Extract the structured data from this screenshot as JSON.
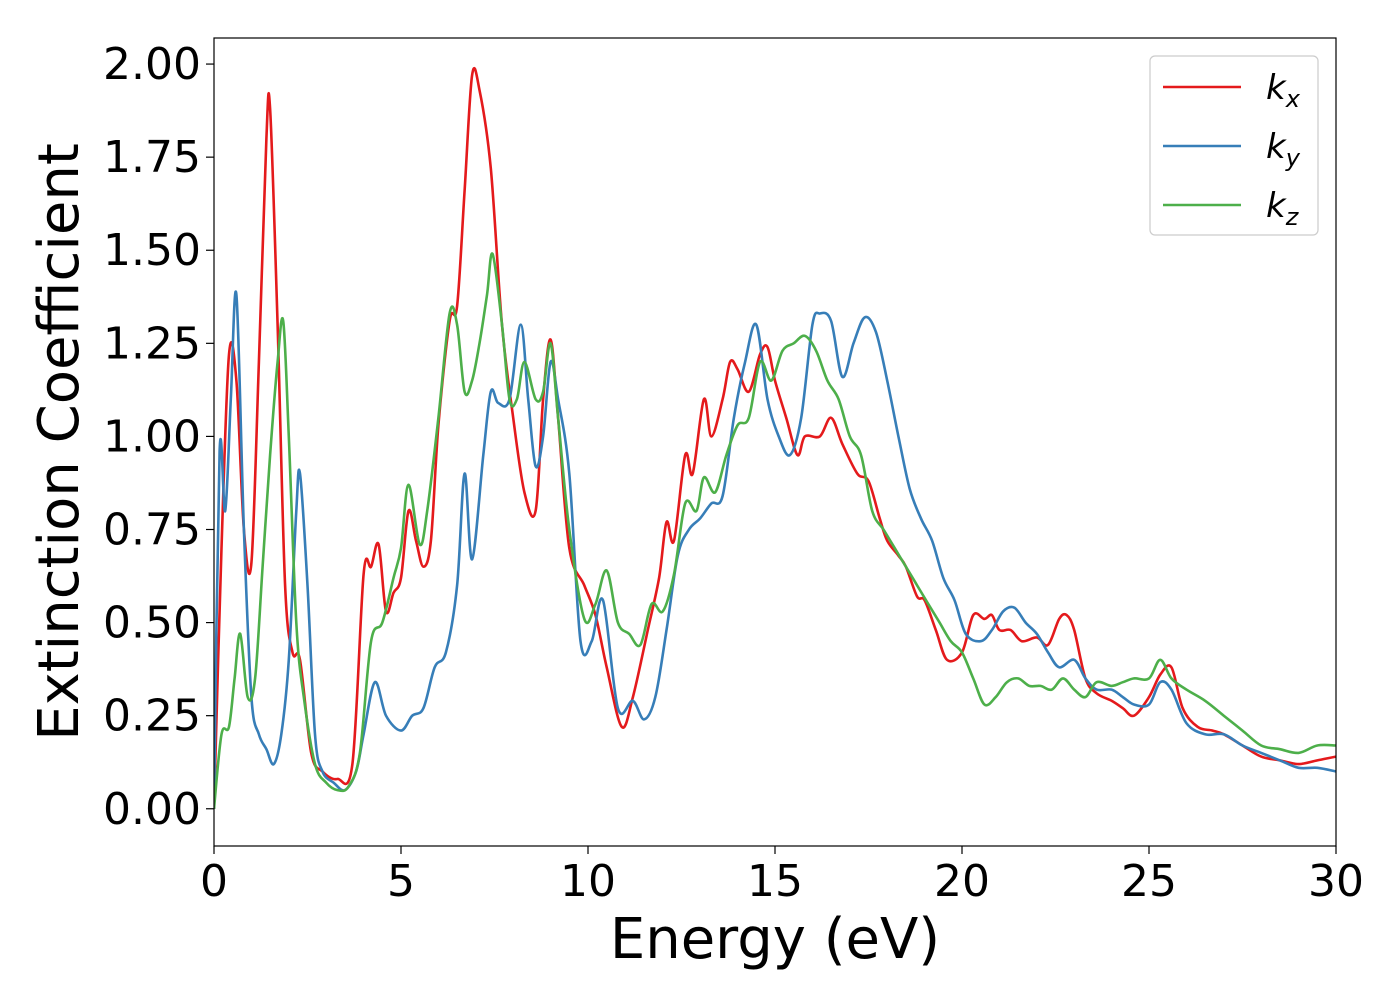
{
  "chart_data": {
    "type": "line",
    "title": "",
    "xlabel": "Energy (eV)",
    "ylabel": "Extinction Coefficient",
    "xlim": [
      0,
      30
    ],
    "ylim": [
      -0.1,
      2.07
    ],
    "xticks": [
      0,
      5,
      10,
      15,
      20,
      25,
      30
    ],
    "xtick_labels": [
      "0",
      "5",
      "10",
      "15",
      "20",
      "25",
      "30"
    ],
    "yticks": [
      0.0,
      0.25,
      0.5,
      0.75,
      1.0,
      1.25,
      1.5,
      1.75,
      2.0
    ],
    "ytick_labels": [
      "0.00",
      "0.25",
      "0.50",
      "0.75",
      "1.00",
      "1.25",
      "1.50",
      "1.75",
      "2.00"
    ],
    "grid": false,
    "legend_position": "top-right",
    "series": [
      {
        "name": "k",
        "subscript": "x",
        "color": "#e41a1c",
        "points": [
          [
            0,
            0.0
          ],
          [
            0.2,
            0.7
          ],
          [
            0.4,
            1.22
          ],
          [
            0.6,
            1.15
          ],
          [
            0.8,
            0.75
          ],
          [
            1.0,
            0.66
          ],
          [
            1.2,
            1.2
          ],
          [
            1.4,
            1.8
          ],
          [
            1.5,
            1.88
          ],
          [
            1.7,
            1.3
          ],
          [
            1.9,
            0.6
          ],
          [
            2.1,
            0.42
          ],
          [
            2.3,
            0.4
          ],
          [
            2.6,
            0.15
          ],
          [
            2.9,
            0.1
          ],
          [
            3.3,
            0.08
          ],
          [
            3.7,
            0.12
          ],
          [
            4.0,
            0.63
          ],
          [
            4.2,
            0.65
          ],
          [
            4.4,
            0.71
          ],
          [
            4.6,
            0.53
          ],
          [
            4.8,
            0.58
          ],
          [
            5.0,
            0.62
          ],
          [
            5.2,
            0.8
          ],
          [
            5.4,
            0.72
          ],
          [
            5.6,
            0.65
          ],
          [
            5.8,
            0.72
          ],
          [
            6.0,
            1.03
          ],
          [
            6.3,
            1.31
          ],
          [
            6.5,
            1.35
          ],
          [
            6.7,
            1.66
          ],
          [
            6.9,
            1.97
          ],
          [
            7.1,
            1.93
          ],
          [
            7.4,
            1.72
          ],
          [
            7.7,
            1.3
          ],
          [
            8.0,
            1.05
          ],
          [
            8.3,
            0.85
          ],
          [
            8.6,
            0.8
          ],
          [
            8.8,
            1.1
          ],
          [
            9.0,
            1.26
          ],
          [
            9.2,
            1.05
          ],
          [
            9.5,
            0.7
          ],
          [
            9.9,
            0.6
          ],
          [
            10.2,
            0.52
          ],
          [
            10.5,
            0.38
          ],
          [
            10.9,
            0.22
          ],
          [
            11.2,
            0.3
          ],
          [
            11.6,
            0.48
          ],
          [
            11.9,
            0.62
          ],
          [
            12.1,
            0.77
          ],
          [
            12.3,
            0.72
          ],
          [
            12.6,
            0.95
          ],
          [
            12.8,
            0.9
          ],
          [
            13.1,
            1.1
          ],
          [
            13.3,
            1.0
          ],
          [
            13.6,
            1.1
          ],
          [
            13.8,
            1.2
          ],
          [
            14.0,
            1.18
          ],
          [
            14.3,
            1.12
          ],
          [
            14.6,
            1.22
          ],
          [
            14.8,
            1.24
          ],
          [
            15.0,
            1.15
          ],
          [
            15.3,
            1.05
          ],
          [
            15.6,
            0.95
          ],
          [
            15.8,
            1.0
          ],
          [
            16.2,
            1.0
          ],
          [
            16.5,
            1.05
          ],
          [
            16.8,
            0.98
          ],
          [
            17.2,
            0.9
          ],
          [
            17.5,
            0.88
          ],
          [
            17.8,
            0.78
          ],
          [
            18.0,
            0.72
          ],
          [
            18.3,
            0.68
          ],
          [
            18.5,
            0.65
          ],
          [
            18.8,
            0.57
          ],
          [
            19.0,
            0.56
          ],
          [
            19.3,
            0.48
          ],
          [
            19.6,
            0.4
          ],
          [
            20.0,
            0.42
          ],
          [
            20.3,
            0.52
          ],
          [
            20.6,
            0.51
          ],
          [
            20.8,
            0.52
          ],
          [
            21.0,
            0.48
          ],
          [
            21.3,
            0.48
          ],
          [
            21.6,
            0.45
          ],
          [
            22.0,
            0.46
          ],
          [
            22.3,
            0.44
          ],
          [
            22.6,
            0.51
          ],
          [
            22.8,
            0.52
          ],
          [
            23.0,
            0.48
          ],
          [
            23.3,
            0.35
          ],
          [
            23.6,
            0.31
          ],
          [
            24.0,
            0.29
          ],
          [
            24.3,
            0.27
          ],
          [
            24.6,
            0.25
          ],
          [
            25.0,
            0.3
          ],
          [
            25.3,
            0.36
          ],
          [
            25.6,
            0.38
          ],
          [
            25.9,
            0.27
          ],
          [
            26.3,
            0.22
          ],
          [
            26.7,
            0.21
          ],
          [
            27.0,
            0.2
          ],
          [
            27.5,
            0.17
          ],
          [
            28.0,
            0.14
          ],
          [
            28.5,
            0.13
          ],
          [
            29.0,
            0.12
          ],
          [
            29.5,
            0.13
          ],
          [
            30.0,
            0.14
          ]
        ]
      },
      {
        "name": "k",
        "subscript": "y",
        "color": "#377eb8",
        "points": [
          [
            0,
            0.0
          ],
          [
            0.15,
            0.96
          ],
          [
            0.3,
            0.8
          ],
          [
            0.45,
            1.1
          ],
          [
            0.6,
            1.38
          ],
          [
            0.8,
            0.75
          ],
          [
            1.0,
            0.3
          ],
          [
            1.2,
            0.2
          ],
          [
            1.4,
            0.16
          ],
          [
            1.6,
            0.12
          ],
          [
            1.8,
            0.2
          ],
          [
            2.0,
            0.4
          ],
          [
            2.2,
            0.8
          ],
          [
            2.3,
            0.9
          ],
          [
            2.5,
            0.6
          ],
          [
            2.7,
            0.2
          ],
          [
            2.9,
            0.1
          ],
          [
            3.2,
            0.07
          ],
          [
            3.5,
            0.05
          ],
          [
            3.8,
            0.1
          ],
          [
            4.0,
            0.2
          ],
          [
            4.3,
            0.34
          ],
          [
            4.6,
            0.25
          ],
          [
            5.0,
            0.21
          ],
          [
            5.3,
            0.25
          ],
          [
            5.6,
            0.27
          ],
          [
            5.9,
            0.38
          ],
          [
            6.2,
            0.42
          ],
          [
            6.5,
            0.6
          ],
          [
            6.7,
            0.9
          ],
          [
            6.9,
            0.67
          ],
          [
            7.2,
            0.95
          ],
          [
            7.4,
            1.12
          ],
          [
            7.6,
            1.09
          ],
          [
            7.9,
            1.1
          ],
          [
            8.2,
            1.3
          ],
          [
            8.4,
            1.1
          ],
          [
            8.6,
            0.92
          ],
          [
            8.8,
            1.0
          ],
          [
            9.0,
            1.2
          ],
          [
            9.2,
            1.1
          ],
          [
            9.5,
            0.9
          ],
          [
            9.8,
            0.45
          ],
          [
            10.1,
            0.45
          ],
          [
            10.4,
            0.56
          ],
          [
            10.8,
            0.27
          ],
          [
            11.2,
            0.29
          ],
          [
            11.5,
            0.24
          ],
          [
            11.8,
            0.3
          ],
          [
            12.1,
            0.48
          ],
          [
            12.4,
            0.68
          ],
          [
            12.7,
            0.75
          ],
          [
            13.0,
            0.78
          ],
          [
            13.3,
            0.82
          ],
          [
            13.6,
            0.84
          ],
          [
            13.9,
            1.05
          ],
          [
            14.2,
            1.2
          ],
          [
            14.5,
            1.3
          ],
          [
            14.8,
            1.1
          ],
          [
            15.1,
            1.0
          ],
          [
            15.4,
            0.95
          ],
          [
            15.7,
            1.05
          ],
          [
            16.0,
            1.3
          ],
          [
            16.2,
            1.33
          ],
          [
            16.5,
            1.31
          ],
          [
            16.8,
            1.16
          ],
          [
            17.1,
            1.25
          ],
          [
            17.4,
            1.32
          ],
          [
            17.7,
            1.28
          ],
          [
            18.0,
            1.15
          ],
          [
            18.3,
            1.0
          ],
          [
            18.6,
            0.86
          ],
          [
            18.9,
            0.78
          ],
          [
            19.2,
            0.72
          ],
          [
            19.5,
            0.62
          ],
          [
            19.8,
            0.56
          ],
          [
            20.1,
            0.47
          ],
          [
            20.5,
            0.45
          ],
          [
            20.8,
            0.48
          ],
          [
            21.1,
            0.53
          ],
          [
            21.4,
            0.54
          ],
          [
            21.7,
            0.5
          ],
          [
            22.0,
            0.47
          ],
          [
            22.3,
            0.42
          ],
          [
            22.6,
            0.38
          ],
          [
            23.0,
            0.4
          ],
          [
            23.3,
            0.35
          ],
          [
            23.6,
            0.32
          ],
          [
            24.0,
            0.32
          ],
          [
            24.3,
            0.3
          ],
          [
            24.6,
            0.28
          ],
          [
            25.0,
            0.28
          ],
          [
            25.3,
            0.34
          ],
          [
            25.6,
            0.32
          ],
          [
            26.0,
            0.23
          ],
          [
            26.5,
            0.2
          ],
          [
            27.0,
            0.2
          ],
          [
            27.5,
            0.17
          ],
          [
            28.0,
            0.15
          ],
          [
            28.5,
            0.13
          ],
          [
            29.0,
            0.11
          ],
          [
            29.5,
            0.11
          ],
          [
            30.0,
            0.1
          ]
        ]
      },
      {
        "name": "k",
        "subscript": "z",
        "color": "#4daf4a",
        "points": [
          [
            0,
            0.0
          ],
          [
            0.2,
            0.2
          ],
          [
            0.4,
            0.22
          ],
          [
            0.55,
            0.35
          ],
          [
            0.7,
            0.47
          ],
          [
            0.9,
            0.3
          ],
          [
            1.1,
            0.35
          ],
          [
            1.3,
            0.65
          ],
          [
            1.5,
            0.95
          ],
          [
            1.7,
            1.2
          ],
          [
            1.85,
            1.31
          ],
          [
            2.0,
            1.0
          ],
          [
            2.2,
            0.5
          ],
          [
            2.4,
            0.3
          ],
          [
            2.7,
            0.12
          ],
          [
            3.0,
            0.07
          ],
          [
            3.3,
            0.05
          ],
          [
            3.6,
            0.06
          ],
          [
            3.9,
            0.15
          ],
          [
            4.2,
            0.45
          ],
          [
            4.5,
            0.5
          ],
          [
            4.8,
            0.62
          ],
          [
            5.0,
            0.7
          ],
          [
            5.2,
            0.87
          ],
          [
            5.5,
            0.71
          ],
          [
            5.7,
            0.8
          ],
          [
            6.0,
            1.05
          ],
          [
            6.3,
            1.33
          ],
          [
            6.5,
            1.3
          ],
          [
            6.7,
            1.12
          ],
          [
            6.9,
            1.15
          ],
          [
            7.1,
            1.25
          ],
          [
            7.3,
            1.38
          ],
          [
            7.45,
            1.49
          ],
          [
            7.7,
            1.3
          ],
          [
            7.9,
            1.1
          ],
          [
            8.1,
            1.1
          ],
          [
            8.3,
            1.2
          ],
          [
            8.6,
            1.1
          ],
          [
            8.8,
            1.12
          ],
          [
            9.0,
            1.25
          ],
          [
            9.2,
            1.05
          ],
          [
            9.5,
            0.75
          ],
          [
            9.9,
            0.51
          ],
          [
            10.2,
            0.55
          ],
          [
            10.5,
            0.64
          ],
          [
            10.8,
            0.5
          ],
          [
            11.1,
            0.47
          ],
          [
            11.4,
            0.44
          ],
          [
            11.7,
            0.55
          ],
          [
            12.0,
            0.53
          ],
          [
            12.3,
            0.63
          ],
          [
            12.6,
            0.82
          ],
          [
            12.9,
            0.8
          ],
          [
            13.1,
            0.89
          ],
          [
            13.4,
            0.85
          ],
          [
            13.7,
            0.95
          ],
          [
            14.0,
            1.03
          ],
          [
            14.3,
            1.05
          ],
          [
            14.6,
            1.2
          ],
          [
            14.9,
            1.15
          ],
          [
            15.2,
            1.23
          ],
          [
            15.5,
            1.25
          ],
          [
            15.8,
            1.27
          ],
          [
            16.1,
            1.23
          ],
          [
            16.4,
            1.15
          ],
          [
            16.7,
            1.1
          ],
          [
            17.0,
            1.0
          ],
          [
            17.3,
            0.95
          ],
          [
            17.6,
            0.8
          ],
          [
            17.9,
            0.75
          ],
          [
            18.2,
            0.7
          ],
          [
            18.5,
            0.65
          ],
          [
            18.8,
            0.6
          ],
          [
            19.1,
            0.55
          ],
          [
            19.4,
            0.5
          ],
          [
            19.7,
            0.45
          ],
          [
            20.0,
            0.42
          ],
          [
            20.3,
            0.35
          ],
          [
            20.6,
            0.28
          ],
          [
            20.9,
            0.3
          ],
          [
            21.2,
            0.34
          ],
          [
            21.5,
            0.35
          ],
          [
            21.8,
            0.33
          ],
          [
            22.1,
            0.33
          ],
          [
            22.4,
            0.32
          ],
          [
            22.7,
            0.35
          ],
          [
            23.0,
            0.32
          ],
          [
            23.3,
            0.3
          ],
          [
            23.6,
            0.34
          ],
          [
            24.0,
            0.33
          ],
          [
            24.3,
            0.34
          ],
          [
            24.6,
            0.35
          ],
          [
            25.0,
            0.35
          ],
          [
            25.3,
            0.4
          ],
          [
            25.6,
            0.35
          ],
          [
            26.0,
            0.32
          ],
          [
            26.5,
            0.29
          ],
          [
            27.0,
            0.25
          ],
          [
            27.5,
            0.21
          ],
          [
            28.0,
            0.17
          ],
          [
            28.5,
            0.16
          ],
          [
            29.0,
            0.15
          ],
          [
            29.5,
            0.17
          ],
          [
            30.0,
            0.17
          ]
        ]
      }
    ]
  }
}
